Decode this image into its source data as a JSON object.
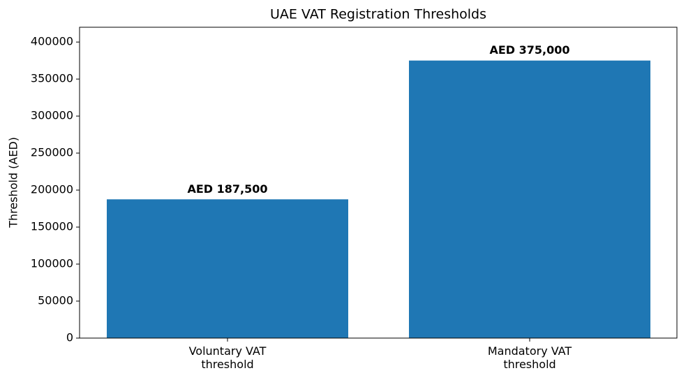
{
  "chart_data": {
    "type": "bar",
    "title": "UAE VAT Registration Thresholds",
    "y_label": "Threshold (AED)",
    "categories": [
      "Voluntary VAT\nthreshold",
      "Mandatory VAT\nthreshold"
    ],
    "values": [
      187500,
      375000
    ],
    "value_labels": [
      "AED 187,500",
      "AED 375,000"
    ],
    "color": "#1f77b4",
    "ylim": [
      0,
      420000
    ],
    "yticks": [
      0,
      50000,
      100000,
      150000,
      200000,
      250000,
      300000,
      350000,
      400000
    ],
    "grid": false
  }
}
